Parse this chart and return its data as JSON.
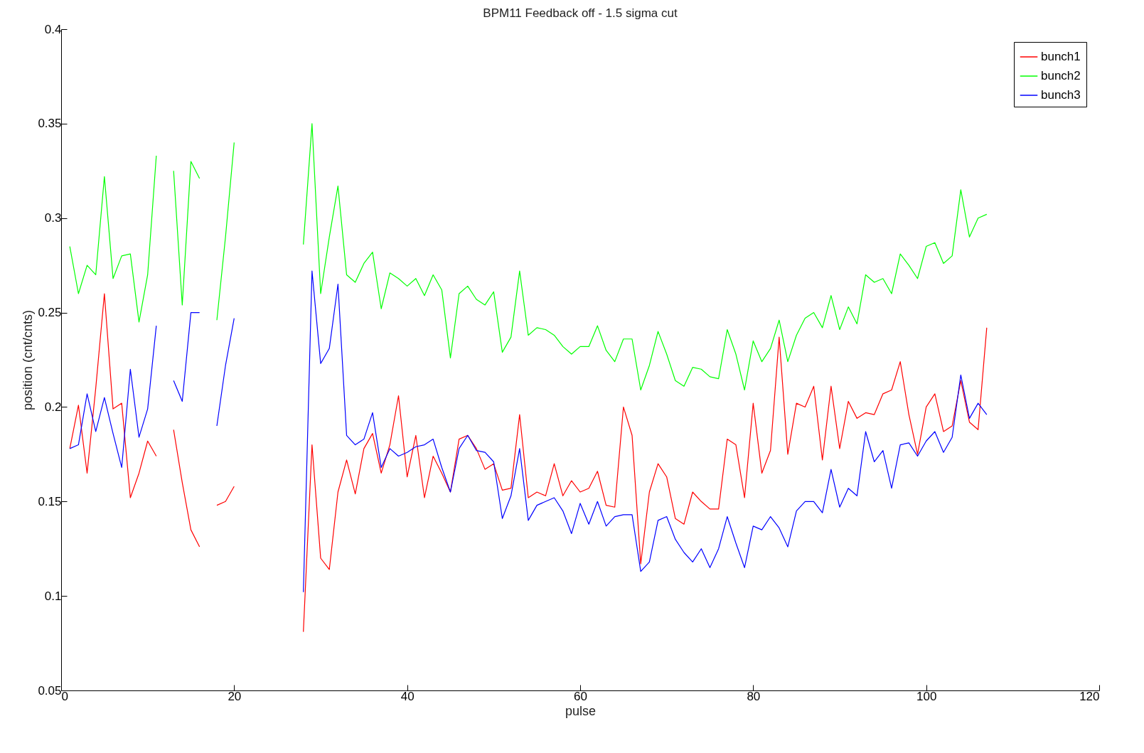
{
  "chart_data": {
    "type": "line",
    "title": "BPM11 Feedback off - 1.5 sigma cut",
    "xlabel": "pulse",
    "ylabel": "position (cnt/cnts)",
    "x": [
      1,
      2,
      3,
      4,
      5,
      6,
      7,
      8,
      9,
      10,
      11,
      12,
      13,
      14,
      15,
      16,
      17,
      18,
      19,
      20,
      21,
      22,
      23,
      24,
      25,
      26,
      27,
      28,
      29,
      30,
      31,
      32,
      33,
      34,
      35,
      36,
      37,
      38,
      39,
      40,
      41,
      42,
      43,
      44,
      45,
      46,
      47,
      48,
      49,
      50,
      51,
      52,
      53,
      54,
      55,
      56,
      57,
      58,
      59,
      60,
      61,
      62,
      63,
      64,
      65,
      66,
      67,
      68,
      69,
      70,
      71,
      72,
      73,
      74,
      75,
      76,
      77,
      78,
      79,
      80,
      81,
      82,
      83,
      84,
      85,
      86,
      87,
      88,
      89,
      90,
      91,
      92,
      93,
      94,
      95,
      96,
      97,
      98,
      99,
      100,
      101,
      102,
      103,
      104,
      105,
      106,
      107
    ],
    "series": [
      {
        "name": "bunch1",
        "color": "#ff0000",
        "values": [
          0.178,
          0.201,
          0.165,
          0.21,
          0.26,
          0.199,
          0.202,
          0.152,
          0.165,
          0.182,
          0.174,
          null,
          0.188,
          0.16,
          0.135,
          0.126,
          null,
          0.148,
          0.15,
          0.158,
          null,
          null,
          null,
          null,
          null,
          null,
          null,
          0.081,
          0.18,
          0.12,
          0.114,
          0.155,
          0.172,
          0.154,
          0.178,
          0.186,
          0.165,
          0.18,
          0.206,
          0.163,
          0.185,
          0.152,
          0.174,
          0.165,
          0.155,
          0.183,
          0.185,
          0.178,
          0.167,
          0.17,
          0.156,
          0.157,
          0.196,
          0.152,
          0.155,
          0.153,
          0.17,
          0.153,
          0.161,
          0.155,
          0.157,
          0.166,
          0.148,
          0.147,
          0.2,
          0.185,
          0.117,
          0.155,
          0.17,
          0.163,
          0.141,
          0.138,
          0.155,
          0.15,
          0.146,
          0.146,
          0.183,
          0.18,
          0.152,
          0.202,
          0.165,
          0.177,
          0.237,
          0.175,
          0.202,
          0.2,
          0.211,
          0.172,
          0.211,
          0.178,
          0.203,
          0.194,
          0.197,
          0.196,
          0.207,
          0.209,
          0.224,
          0.196,
          0.175,
          0.2,
          0.207,
          0.187,
          0.19,
          0.214,
          0.192,
          0.188,
          0.242
        ]
      },
      {
        "name": "bunch2",
        "color": "#00ff00",
        "values": [
          0.285,
          0.26,
          0.275,
          0.27,
          0.322,
          0.268,
          0.28,
          0.281,
          0.245,
          0.27,
          0.333,
          null,
          0.325,
          0.254,
          0.33,
          0.321,
          null,
          0.246,
          0.29,
          0.34,
          null,
          null,
          null,
          null,
          null,
          null,
          null,
          0.286,
          0.35,
          0.26,
          0.29,
          0.317,
          0.27,
          0.266,
          0.276,
          0.282,
          0.252,
          0.271,
          0.268,
          0.264,
          0.268,
          0.259,
          0.27,
          0.262,
          0.226,
          0.26,
          0.264,
          0.257,
          0.254,
          0.261,
          0.229,
          0.237,
          0.272,
          0.238,
          0.242,
          0.241,
          0.238,
          0.232,
          0.228,
          0.232,
          0.232,
          0.243,
          0.23,
          0.224,
          0.236,
          0.236,
          0.209,
          0.222,
          0.24,
          0.228,
          0.214,
          0.211,
          0.221,
          0.22,
          0.216,
          0.215,
          0.241,
          0.228,
          0.209,
          0.235,
          0.224,
          0.231,
          0.246,
          0.224,
          0.238,
          0.247,
          0.25,
          0.242,
          0.259,
          0.241,
          0.253,
          0.244,
          0.27,
          0.266,
          0.268,
          0.26,
          0.281,
          0.275,
          0.268,
          0.285,
          0.287,
          0.276,
          0.28,
          0.315,
          0.29,
          0.3,
          0.302
        ]
      },
      {
        "name": "bunch3",
        "color": "#0000ff",
        "values": [
          0.178,
          0.18,
          0.207,
          0.187,
          0.205,
          0.186,
          0.168,
          0.22,
          0.184,
          0.199,
          0.243,
          null,
          0.214,
          0.203,
          0.25,
          0.25,
          null,
          0.19,
          0.222,
          0.247,
          null,
          null,
          null,
          null,
          null,
          null,
          null,
          0.102,
          0.272,
          0.223,
          0.231,
          0.265,
          0.185,
          0.18,
          0.183,
          0.197,
          0.168,
          0.178,
          0.174,
          0.176,
          0.179,
          0.18,
          0.183,
          0.168,
          0.155,
          0.178,
          0.185,
          0.177,
          0.176,
          0.171,
          0.141,
          0.153,
          0.178,
          0.14,
          0.148,
          0.15,
          0.152,
          0.145,
          0.133,
          0.149,
          0.138,
          0.15,
          0.137,
          0.142,
          0.143,
          0.143,
          0.113,
          0.118,
          0.14,
          0.142,
          0.13,
          0.123,
          0.118,
          0.125,
          0.115,
          0.125,
          0.142,
          0.128,
          0.115,
          0.137,
          0.135,
          0.142,
          0.136,
          0.126,
          0.145,
          0.15,
          0.15,
          0.144,
          0.167,
          0.147,
          0.157,
          0.153,
          0.187,
          0.171,
          0.177,
          0.157,
          0.18,
          0.181,
          0.174,
          0.182,
          0.187,
          0.176,
          0.184,
          0.217,
          0.194,
          0.202,
          0.196
        ]
      }
    ],
    "xlim": [
      0,
      120
    ],
    "xticks": [
      0,
      20,
      40,
      60,
      80,
      100,
      120
    ],
    "ylim": [
      0.05,
      0.4
    ],
    "yticks": [
      0.05,
      0.1,
      0.15,
      0.2,
      0.25,
      0.3,
      0.35,
      0.4
    ],
    "grid": false,
    "legend": "top right"
  }
}
